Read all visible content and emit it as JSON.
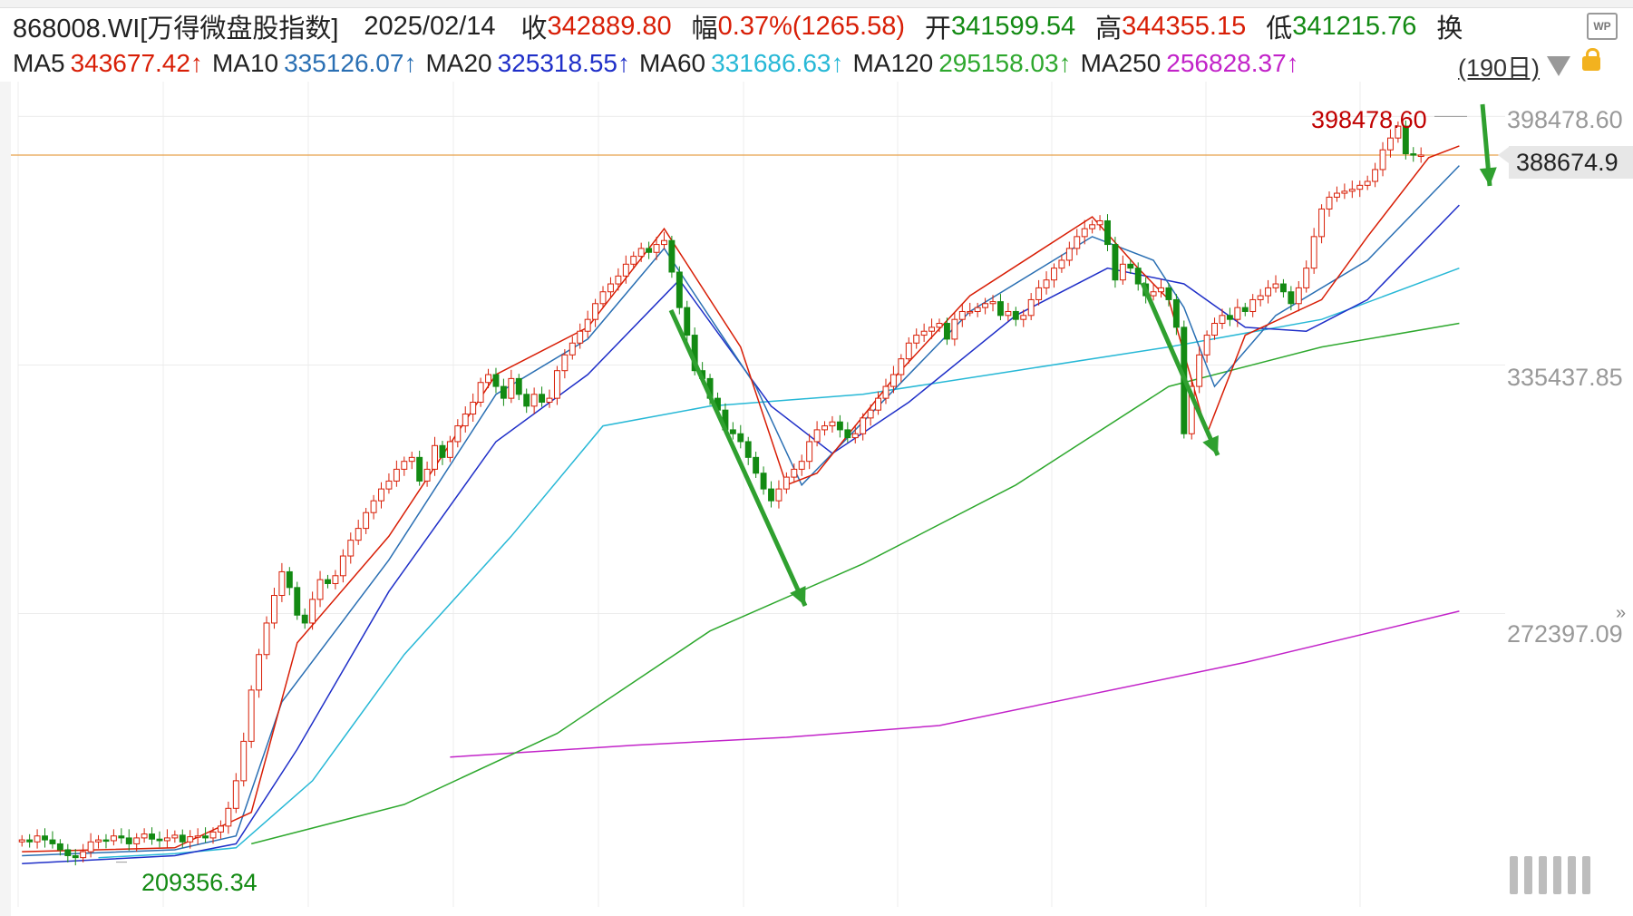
{
  "header": {
    "code": "868008.WI[万得微盘股指数]",
    "date": "2025/02/14",
    "close_label": "收",
    "close_value": "342889.80",
    "change_label": "幅",
    "change_value": "0.37%(1265.58)",
    "open_label": "开",
    "open_value": "341599.54",
    "high_label": "高",
    "high_value": "344355.15",
    "low_label": "低",
    "low_value": "341215.76",
    "turnover_label": "换"
  },
  "ma_row": {
    "items": [
      {
        "label": "MA5",
        "value": "343677.42↑",
        "color": "#d81e06"
      },
      {
        "label": "MA10",
        "value": "335126.07↑",
        "color": "#2a6fb3"
      },
      {
        "label": "MA20",
        "value": "325318.55↑",
        "color": "#1f2fc8"
      },
      {
        "label": "MA60",
        "value": "331686.63↑",
        "color": "#27b8d6"
      },
      {
        "label": "MA120",
        "value": "295158.03↑",
        "color": "#2ea82e"
      },
      {
        "label": "MA250",
        "value": "256828.37↑",
        "color": "#c223c9"
      }
    ],
    "period": "(190日)"
  },
  "colors": {
    "up": "#d81e06",
    "down": "#138a13",
    "ma5": "#d81e06",
    "ma10": "#2a6fb3",
    "ma20": "#1f2fc8",
    "ma60": "#27b8d6",
    "ma120": "#2ea82e",
    "ma250": "#c223c9",
    "arrow": "#2fa02f",
    "current_line": "#e8a04a"
  },
  "chart_data": {
    "type": "candlestick",
    "title": "868008.WI[万得微盘股指数]",
    "y_ticks": [
      "398478.60",
      "335437.85",
      "272397.09"
    ],
    "ylim": [
      198000,
      405000
    ],
    "current_price_label": "388674.9",
    "current_price": 388674.9,
    "max_label": "398478.60",
    "min_label": "209356.34",
    "grid": true,
    "candle_count": 190,
    "close_series": [
      215000,
      214500,
      216000,
      215000,
      214000,
      212500,
      211000,
      210500,
      212000,
      214500,
      215000,
      214800,
      216000,
      215500,
      214000,
      215500,
      216500,
      215200,
      214800,
      215500,
      216200,
      214500,
      215800,
      216000,
      215500,
      217000,
      218500,
      223000,
      230000,
      240000,
      253000,
      262000,
      270000,
      277000,
      283000,
      279000,
      272000,
      270000,
      276000,
      281000,
      280000,
      282000,
      287000,
      291000,
      294000,
      298000,
      301000,
      304000,
      306000,
      309000,
      311000,
      312000,
      306000,
      309000,
      315000,
      312000,
      316000,
      320000,
      323000,
      326000,
      331000,
      333000,
      330000,
      327000,
      332000,
      328000,
      325000,
      328000,
      326000,
      327000,
      334000,
      338000,
      341000,
      344000,
      347000,
      351000,
      354000,
      356000,
      358000,
      361000,
      363000,
      365000,
      364000,
      366000,
      367000,
      359000,
      350000,
      343000,
      334000,
      332000,
      327000,
      324000,
      319000,
      318000,
      316000,
      312000,
      308000,
      304000,
      301000,
      304000,
      307000,
      309000,
      311000,
      316000,
      319000,
      320000,
      321000,
      319000,
      317000,
      318000,
      322000,
      324000,
      327000,
      330000,
      333000,
      337000,
      341000,
      343000,
      344000,
      345000,
      346000,
      342000,
      347000,
      349000,
      349000,
      350000,
      351000,
      351500,
      348000,
      349000,
      347000,
      348000,
      352000,
      355000,
      357000,
      360000,
      362000,
      365000,
      368000,
      370000,
      371000,
      372000,
      366000,
      357000,
      361000,
      360000,
      356000,
      353000,
      354000,
      355000,
      352000,
      345000,
      318000,
      330000,
      338000,
      343000,
      346000,
      348000,
      347000,
      350000,
      349000,
      352000,
      353000,
      355000,
      356000,
      354000,
      351000,
      355000,
      360000,
      368000,
      375000,
      378000,
      379000,
      379500,
      380000,
      381000,
      382000,
      385000,
      390000,
      393000,
      396000,
      389000,
      388674.9,
      388674.9,
      388674.9,
      388674.9,
      388674.9,
      388674.9,
      388674.9,
      388674.9
    ],
    "ma5": [
      [
        0,
        212000
      ],
      [
        20,
        213000
      ],
      [
        30,
        222000
      ],
      [
        36,
        265000
      ],
      [
        48,
        292000
      ],
      [
        62,
        333000
      ],
      [
        74,
        345000
      ],
      [
        84,
        370000
      ],
      [
        94,
        340000
      ],
      [
        100,
        305000
      ],
      [
        104,
        308000
      ],
      [
        114,
        332000
      ],
      [
        124,
        353000
      ],
      [
        140,
        373000
      ],
      [
        146,
        360000
      ],
      [
        150,
        352000
      ],
      [
        155,
        318000
      ],
      [
        160,
        343000
      ],
      [
        170,
        352000
      ],
      [
        176,
        368000
      ],
      [
        184,
        388000
      ],
      [
        188,
        391000
      ]
    ],
    "ma10": [
      [
        0,
        211000
      ],
      [
        20,
        212500
      ],
      [
        28,
        216000
      ],
      [
        34,
        250000
      ],
      [
        48,
        286000
      ],
      [
        62,
        328000
      ],
      [
        74,
        342000
      ],
      [
        84,
        365000
      ],
      [
        96,
        330000
      ],
      [
        102,
        305000
      ],
      [
        112,
        325000
      ],
      [
        124,
        349000
      ],
      [
        140,
        368000
      ],
      [
        148,
        362000
      ],
      [
        152,
        350000
      ],
      [
        156,
        330000
      ],
      [
        164,
        348000
      ],
      [
        176,
        362000
      ],
      [
        188,
        386000
      ]
    ],
    "ma20": [
      [
        0,
        209000
      ],
      [
        20,
        211000
      ],
      [
        28,
        214000
      ],
      [
        36,
        238000
      ],
      [
        48,
        278000
      ],
      [
        62,
        316000
      ],
      [
        74,
        333000
      ],
      [
        86,
        357000
      ],
      [
        98,
        325000
      ],
      [
        106,
        313000
      ],
      [
        116,
        326000
      ],
      [
        130,
        348000
      ],
      [
        142,
        360000
      ],
      [
        152,
        356000
      ],
      [
        160,
        345000
      ],
      [
        168,
        344000
      ],
      [
        176,
        352000
      ],
      [
        188,
        376000
      ]
    ],
    "ma60": [
      [
        10,
        210500
      ],
      [
        20,
        211500
      ],
      [
        28,
        213000
      ],
      [
        38,
        230000
      ],
      [
        50,
        262000
      ],
      [
        64,
        292000
      ],
      [
        76,
        320000
      ],
      [
        90,
        325000
      ],
      [
        110,
        328000
      ],
      [
        130,
        334000
      ],
      [
        150,
        340000
      ],
      [
        170,
        347000
      ],
      [
        188,
        360000
      ]
    ],
    "ma120": [
      [
        30,
        214000
      ],
      [
        50,
        224000
      ],
      [
        70,
        242000
      ],
      [
        90,
        268000
      ],
      [
        110,
        285000
      ],
      [
        130,
        305000
      ],
      [
        150,
        330000
      ],
      [
        170,
        340000
      ],
      [
        188,
        346000
      ]
    ],
    "ma250": [
      [
        56,
        236000
      ],
      [
        80,
        239000
      ],
      [
        100,
        241000
      ],
      [
        120,
        244000
      ],
      [
        140,
        252000
      ],
      [
        160,
        260000
      ],
      [
        188,
        273000
      ]
    ]
  }
}
